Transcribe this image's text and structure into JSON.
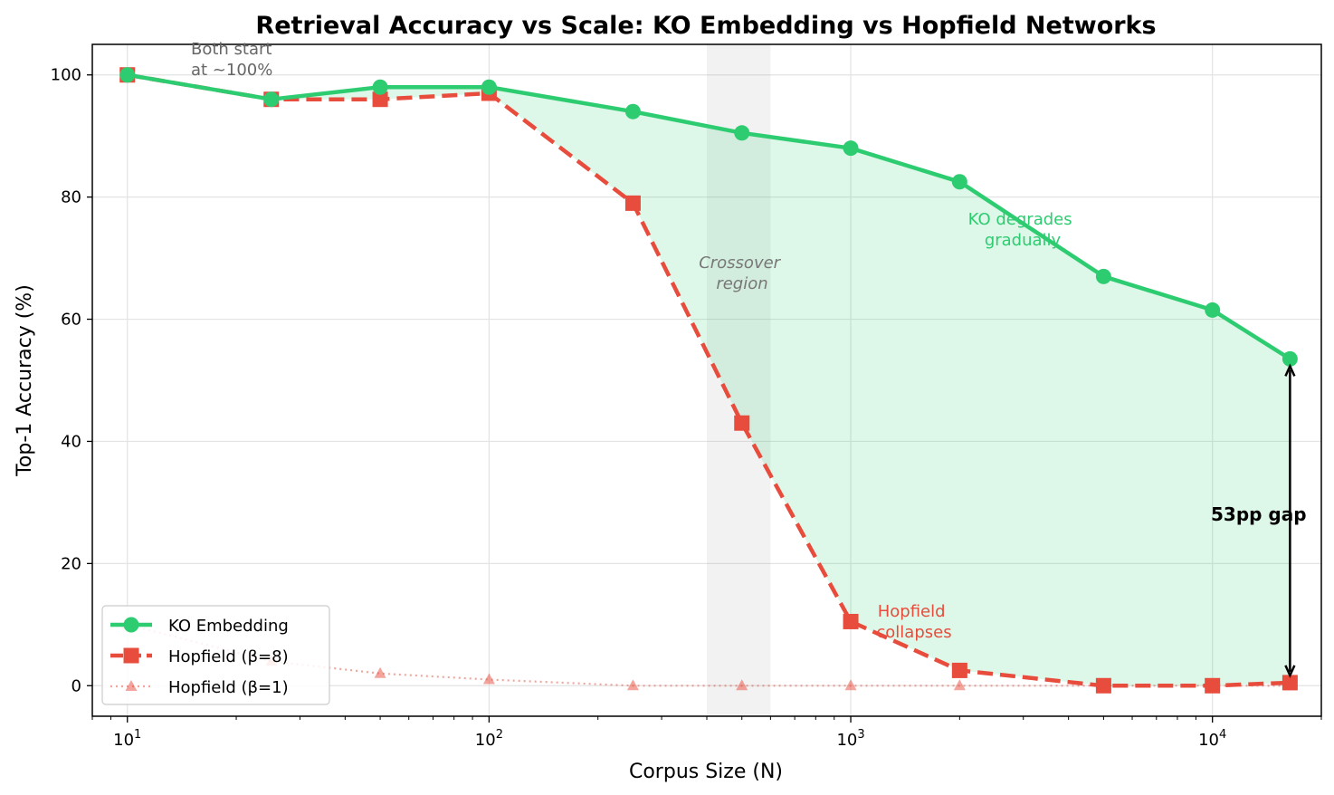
{
  "chart_data": {
    "type": "line",
    "title": "Retrieval Accuracy vs Scale: KO Embedding vs Hopfield Networks",
    "xlabel": "Corpus Size (N)",
    "ylabel": "Top-1 Accuracy (%)",
    "xscale": "log",
    "xlim": [
      8,
      20000
    ],
    "ylim": [
      -5,
      105
    ],
    "grid": true,
    "legend_position": "lower-left",
    "x_ticks": [
      {
        "value": 10,
        "base": "10",
        "exp": "1"
      },
      {
        "value": 100,
        "base": "10",
        "exp": "2"
      },
      {
        "value": 1000,
        "base": "10",
        "exp": "3"
      },
      {
        "value": 10000,
        "base": "10",
        "exp": "4"
      }
    ],
    "y_ticks": [
      0,
      20,
      40,
      60,
      80,
      100
    ],
    "series": [
      {
        "name": "KO Embedding",
        "color": "#2ecc71",
        "style": "solid",
        "marker": "circle",
        "x": [
          10,
          25,
          50,
          100,
          250,
          500,
          1000,
          2000,
          5000,
          10000,
          16384
        ],
        "values": [
          100,
          96,
          98,
          98,
          94,
          90.5,
          88,
          82.5,
          67,
          61.5,
          53.5
        ]
      },
      {
        "name": "Hopfield (β=8)",
        "color": "#e74c3c",
        "style": "dashed",
        "marker": "square",
        "x": [
          10,
          25,
          50,
          100,
          250,
          500,
          1000,
          2000,
          5000,
          10000,
          16384
        ],
        "values": [
          100,
          96,
          96,
          97,
          79,
          43,
          10.5,
          2.5,
          0,
          0,
          0.5
        ]
      },
      {
        "name": "Hopfield (β=1)",
        "color": "#e74c3c",
        "style": "dotted",
        "marker": "triangle",
        "x": [
          10,
          25,
          50,
          100,
          250,
          500,
          1000,
          2000,
          5000,
          10000,
          16384
        ],
        "values": [
          10,
          4,
          2,
          1,
          0,
          0,
          0,
          0,
          0,
          0,
          0
        ]
      }
    ],
    "shaded_region": {
      "x_from": 400,
      "x_to": 600,
      "label_line1": "Crossover",
      "label_line2": "region"
    },
    "annotations": [
      {
        "id": "both-start",
        "line1": "Both start",
        "line2": "at ~100%",
        "color": "#666666"
      },
      {
        "id": "ko-degrades",
        "line1": "KO degrades",
        "line2": "gradually",
        "color": "#2ecc71"
      },
      {
        "id": "hopfield-collapses",
        "line1": "Hopfield",
        "line2": "collapses",
        "color": "#e74c3c"
      },
      {
        "id": "gap",
        "line1": "53pp gap",
        "color": "#000000"
      }
    ]
  }
}
